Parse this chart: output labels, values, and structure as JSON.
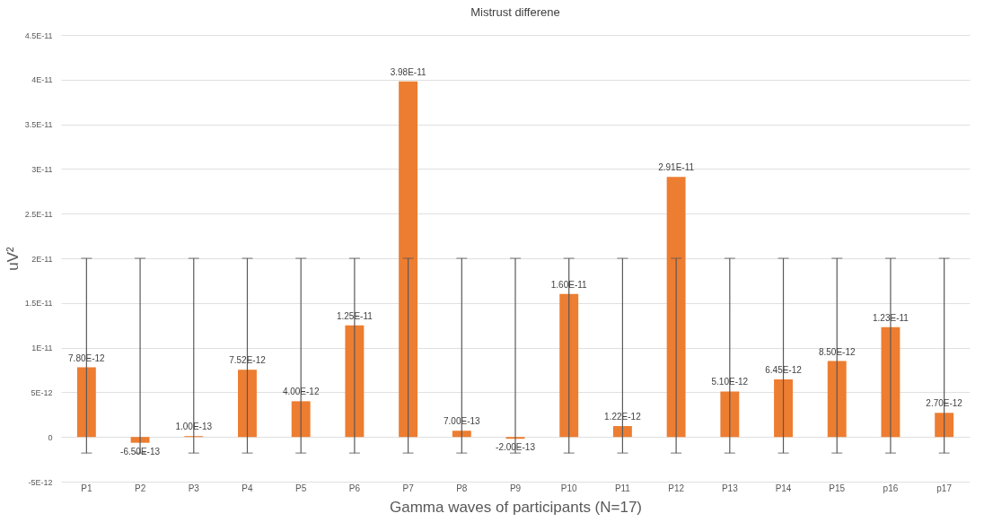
{
  "chart_data": {
    "type": "bar",
    "title": "Mistrust differene",
    "xlabel": "Gamma waves of participants (N=17)",
    "ylabel": "uV²",
    "categories": [
      "P1",
      "P2",
      "P3",
      "P4",
      "P5",
      "P6",
      "P7",
      "P8",
      "P9",
      "P10",
      "P11",
      "P12",
      "P13",
      "P14",
      "P15",
      "p16",
      "p17"
    ],
    "values": [
      7.8e-12,
      -6.5e-13,
      1e-13,
      7.52e-12,
      4e-12,
      1.25e-11,
      3.98e-11,
      7e-13,
      -2e-13,
      1.6e-11,
      1.22e-12,
      2.91e-11,
      5.1e-12,
      6.45e-12,
      8.5e-12,
      1.23e-11,
      2.7e-12
    ],
    "value_labels": [
      "7.80E-12",
      "-6.50E-13",
      "1.00E-13",
      "7.52E-12",
      "4.00E-12",
      "1.25E-11",
      "3.98E-11",
      "7.00E-13",
      "-2.00E-13",
      "1.60E-11",
      "1.22E-12",
      "2.91E-11",
      "5.10E-12",
      "6.45E-12",
      "8.50E-12",
      "1.23E-11",
      "2.70E-12"
    ],
    "errors": [
      [
        -1.8e-12,
        2e-11
      ],
      [
        -1.8e-12,
        2e-11
      ],
      [
        -1.8e-12,
        2e-11
      ],
      [
        -1.8e-12,
        2e-11
      ],
      [
        -1.8e-12,
        2e-11
      ],
      [
        -1.8e-12,
        2e-11
      ],
      [
        -1.8e-12,
        2e-11
      ],
      [
        -1.8e-12,
        2e-11
      ],
      [
        -1.8e-12,
        2e-11
      ],
      [
        -1.8e-12,
        2e-11
      ],
      [
        -1.8e-12,
        2e-11
      ],
      [
        -1.8e-12,
        2e-11
      ],
      [
        -1.8e-12,
        2e-11
      ],
      [
        -1.8e-12,
        2e-11
      ],
      [
        -1.8e-12,
        2e-11
      ],
      [
        -1.8e-12,
        2e-11
      ],
      [
        -1.8e-12,
        2e-11
      ]
    ],
    "color": "#ed7d31",
    "ylim": [
      -5e-12,
      4.5e-11
    ],
    "yticks": [
      {
        "value": -5e-12,
        "label": "-5E-12"
      },
      0,
      {
        "value": 5e-12,
        "label": "5E-12"
      },
      {
        "value": 1e-11,
        "label": "1E-11"
      },
      {
        "value": 1.5e-11,
        "label": "1.5E-11"
      },
      {
        "value": 2e-11,
        "label": "2E-11"
      },
      {
        "value": 2.5e-11,
        "label": "2.5E-11"
      },
      {
        "value": 3e-11,
        "label": "3E-11"
      },
      {
        "value": 3.5e-11,
        "label": "3.5E-11"
      },
      {
        "value": 4e-11,
        "label": "4E-11"
      },
      {
        "value": 4.5e-11,
        "label": "4.5E-11"
      }
    ],
    "grid": "y"
  }
}
